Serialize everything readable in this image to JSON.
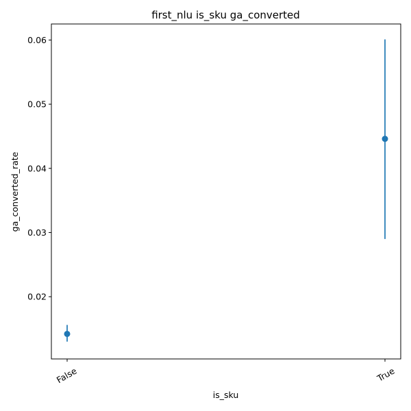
{
  "chart_data": {
    "type": "scatter",
    "title": "first_nlu is_sku ga_converted",
    "xlabel": "is_sku",
    "ylabel": "ga_converted_rate",
    "categories": [
      "False",
      "True"
    ],
    "series": [
      {
        "points": [
          {
            "x": "False",
            "y": 0.0142,
            "err_low": 0.013,
            "err_high": 0.0156
          },
          {
            "x": "True",
            "y": 0.0446,
            "err_low": 0.029,
            "err_high": 0.0601
          }
        ]
      }
    ],
    "yticks": [
      0.02,
      0.03,
      0.04,
      0.05,
      0.06
    ],
    "ytick_labels": [
      "0.02",
      "0.03",
      "0.04",
      "0.05",
      "0.06"
    ],
    "ylim": [
      0.0103,
      0.0625
    ],
    "grid": false,
    "legend": "none",
    "colors": {
      "marker": "#1f77b4",
      "errorbar": "#1f77b4",
      "axes": "#000000"
    }
  }
}
